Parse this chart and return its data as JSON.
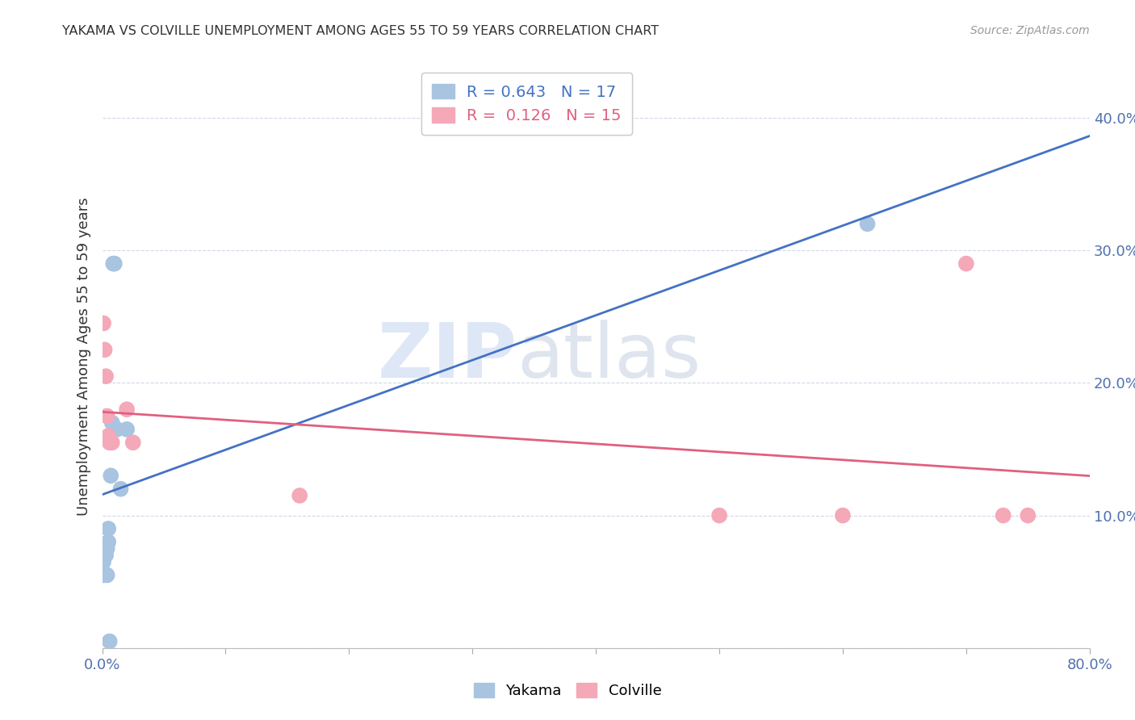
{
  "title": "YAKAMA VS COLVILLE UNEMPLOYMENT AMONG AGES 55 TO 59 YEARS CORRELATION CHART",
  "source": "Source: ZipAtlas.com",
  "ylabel": "Unemployment Among Ages 55 to 59 years",
  "xlim": [
    0.0,
    0.8
  ],
  "ylim": [
    0.0,
    0.44
  ],
  "xticks": [
    0.0,
    0.1,
    0.2,
    0.3,
    0.4,
    0.5,
    0.6,
    0.7,
    0.8
  ],
  "xticklabels": [
    "0.0%",
    "",
    "",
    "",
    "",
    "",
    "",
    "",
    "80.0%"
  ],
  "yticks": [
    0.0,
    0.1,
    0.2,
    0.3,
    0.4
  ],
  "yticklabels": [
    "",
    "10.0%",
    "20.0%",
    "30.0%",
    "40.0%"
  ],
  "yakama_x": [
    0.001,
    0.001,
    0.002,
    0.003,
    0.004,
    0.004,
    0.005,
    0.005,
    0.006,
    0.007,
    0.008,
    0.009,
    0.01,
    0.012,
    0.015,
    0.02,
    0.62
  ],
  "yakama_y": [
    0.055,
    0.065,
    0.07,
    0.07,
    0.055,
    0.075,
    0.08,
    0.09,
    0.005,
    0.13,
    0.17,
    0.29,
    0.29,
    0.165,
    0.12,
    0.165,
    0.32
  ],
  "colville_x": [
    0.001,
    0.002,
    0.003,
    0.004,
    0.005,
    0.006,
    0.008,
    0.02,
    0.025,
    0.16,
    0.5,
    0.6,
    0.7,
    0.73,
    0.75
  ],
  "colville_y": [
    0.245,
    0.225,
    0.205,
    0.175,
    0.16,
    0.155,
    0.155,
    0.18,
    0.155,
    0.115,
    0.1,
    0.1,
    0.29,
    0.1,
    0.1
  ],
  "yakama_color": "#a8c4e0",
  "colville_color": "#f4a8b8",
  "yakama_line_color": "#4472c4",
  "colville_line_color": "#e06080",
  "R_yakama": 0.643,
  "N_yakama": 17,
  "R_colville": 0.126,
  "N_colville": 15,
  "background_color": "#ffffff",
  "grid_color": "#d0d8e8",
  "watermark_zip": "ZIP",
  "watermark_atlas": "atlas"
}
